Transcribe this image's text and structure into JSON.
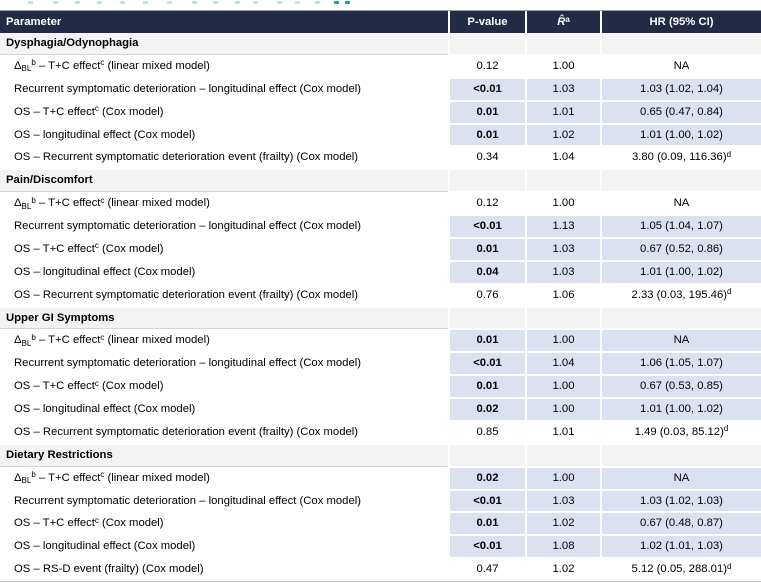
{
  "colors": {
    "header_bg": "#232a46",
    "highlight": "#dce1f1",
    "section_bg": "#f3f3f3",
    "remnant_light": "#bfe3dc",
    "remnant_dark": "#2a9d7f"
  },
  "top_remnant": {
    "light_x": [
      28,
      53,
      75,
      97,
      120,
      143,
      167,
      192,
      213,
      235,
      253,
      277,
      295,
      315
    ],
    "dark_x": [
      334,
      345
    ]
  },
  "table": {
    "header": {
      "columns": [
        "Parameter",
        "P-value",
        "*R̂*^a^",
        "HR (95% CI)"
      ]
    },
    "sections": [
      {
        "title": "Dysphagia/Odynophagia",
        "rows": [
          {
            "param": "Δ~BL~^b^ – T+C effect^c^ (linear mixed model)",
            "p": "0.12",
            "r": "1.00",
            "hr": "NA",
            "sig": false
          },
          {
            "param": "Recurrent symptomatic deterioration – longitudinal effect (Cox model)",
            "p": "<0.01",
            "r": "1.03",
            "hr": "1.03 (1.02, 1.04)",
            "sig": true
          },
          {
            "param": "OS – T+C effect^c^ (Cox model)",
            "p": "0.01",
            "r": "1.01",
            "hr": "0.65 (0.47, 0.84)",
            "sig": true
          },
          {
            "param": "OS – longitudinal effect (Cox model)",
            "p": "0.01",
            "r": "1.02",
            "hr": "1.01 (1.00, 1.02)",
            "sig": true
          },
          {
            "param": "OS – Recurrent symptomatic deterioration event (frailty) (Cox model)",
            "p": "0.34",
            "r": "1.04",
            "hr": "3.80 (0.09, 116.36)^d^",
            "sig": false
          }
        ]
      },
      {
        "title": "Pain/Discomfort",
        "rows": [
          {
            "param": "Δ~BL~^b^ – T+C effect^c^ (linear mixed model)",
            "p": "0.12",
            "r": "1.00",
            "hr": "NA",
            "sig": false
          },
          {
            "param": "Recurrent symptomatic deterioration – longitudinal effect (Cox model)",
            "p": "<0.01",
            "r": "1.13",
            "hr": "1.05 (1.04, 1.07)",
            "sig": true
          },
          {
            "param": "OS – T+C effect^c^ (Cox model)",
            "p": "0.01",
            "r": "1.03",
            "hr": "0.67 (0.52, 0.86)",
            "sig": true
          },
          {
            "param": "OS – longitudinal effect (Cox model)",
            "p": "0.04",
            "r": "1.03",
            "hr": "1.01 (1.00, 1.02)",
            "sig": true
          },
          {
            "param": "OS – Recurrent symptomatic deterioration event (frailty) (Cox model)",
            "p": "0.76",
            "r": "1.06",
            "hr": "2.33 (0.03, 195.46)^d^",
            "sig": false
          }
        ]
      },
      {
        "title": "Upper GI Symptoms",
        "rows": [
          {
            "param": "Δ~BL~^b^ – T+C effect^c^ (linear mixed model)",
            "p": "0.01",
            "r": "1.00",
            "hr": "NA",
            "sig": true
          },
          {
            "param": "Recurrent symptomatic deterioration – longitudinal effect (Cox model)",
            "p": "<0.01",
            "r": "1.04",
            "hr": "1.06 (1.05, 1.07)",
            "sig": true
          },
          {
            "param": "OS – T+C effect^c^ (Cox model)",
            "p": "0.01",
            "r": "1.00",
            "hr": "0.67 (0.53, 0.85)",
            "sig": true
          },
          {
            "param": "OS – longitudinal effect (Cox model)",
            "p": "0.02",
            "r": "1.00",
            "hr": "1.01 (1.00, 1.02)",
            "sig": true
          },
          {
            "param": "OS – Recurrent symptomatic deterioration event (frailty) (Cox model)",
            "p": "0.85",
            "r": "1.01",
            "hr": "1.49 (0.03, 85.12)^d^",
            "sig": false
          }
        ]
      },
      {
        "title": "Dietary Restrictions",
        "rows": [
          {
            "param": "Δ~BL~^b^ – T+C effect^c^ (linear mixed model)",
            "p": "0.02",
            "r": "1.00",
            "hr": "NA",
            "sig": true
          },
          {
            "param": "Recurrent symptomatic deterioration – longitudinal effect (Cox model)",
            "p": "<0.01",
            "r": "1.03",
            "hr": "1.03 (1.02, 1.03)",
            "sig": true
          },
          {
            "param": "OS – T+C effect^c^ (Cox model)",
            "p": "0.01",
            "r": "1.02",
            "hr": "0.67 (0.48, 0.87)",
            "sig": true
          },
          {
            "param": "OS – longitudinal effect (Cox model)",
            "p": "<0.01",
            "r": "1.08",
            "hr": "1.02 (1.01, 1.03)",
            "sig": true
          },
          {
            "param": "OS – RS-D event (frailty) (Cox model)",
            "p": "0.47",
            "r": "1.02",
            "hr": "5.12 (0.05, 288.01)^d^",
            "sig": false
          }
        ]
      }
    ]
  }
}
